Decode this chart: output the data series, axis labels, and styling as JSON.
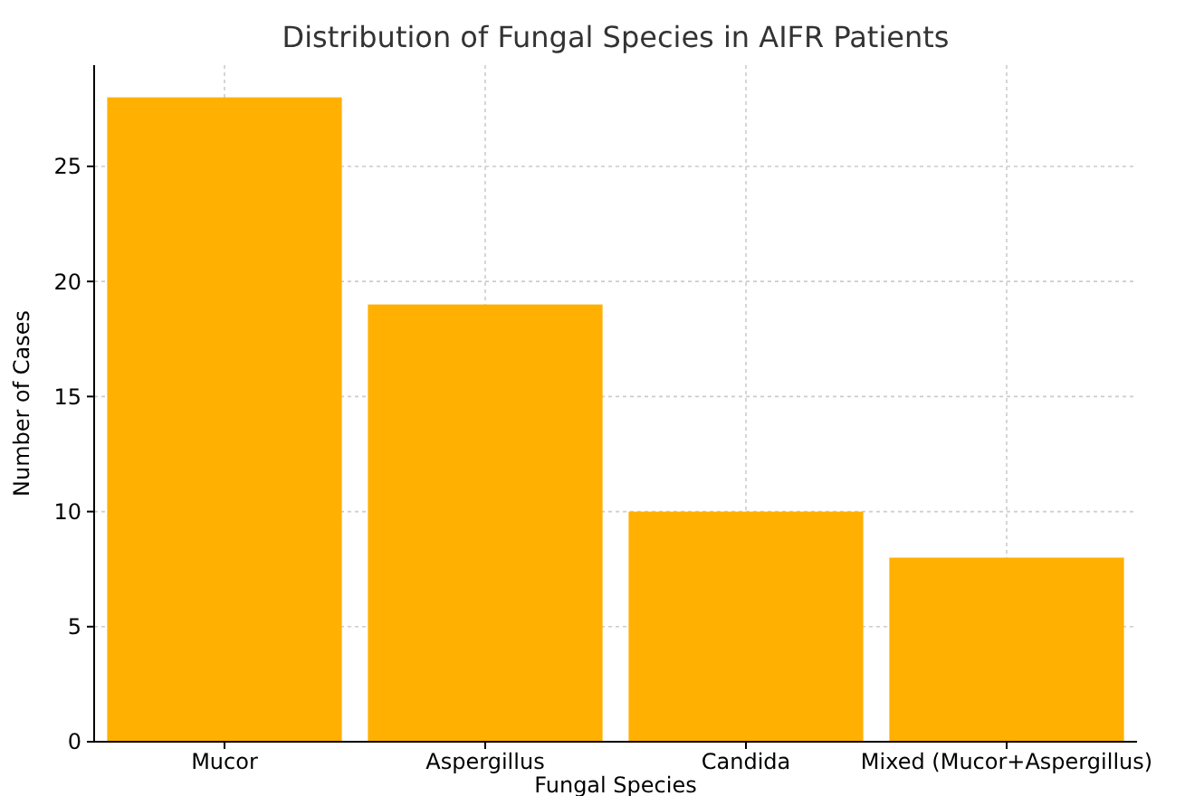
{
  "chart_data": {
    "type": "bar",
    "title": "Distribution of Fungal Species in AIFR Patients",
    "xlabel": "Fungal Species",
    "ylabel": "Number of Cases",
    "categories": [
      "Mucor",
      "Aspergillus",
      "Candida",
      "Mixed (Mucor+Aspergillus)"
    ],
    "values": [
      28,
      19,
      10,
      8
    ],
    "color": "#ffb000",
    "ylim": [
      0,
      29.4
    ],
    "yticks": [
      0,
      5,
      10,
      15,
      20,
      25
    ],
    "grid": true
  }
}
